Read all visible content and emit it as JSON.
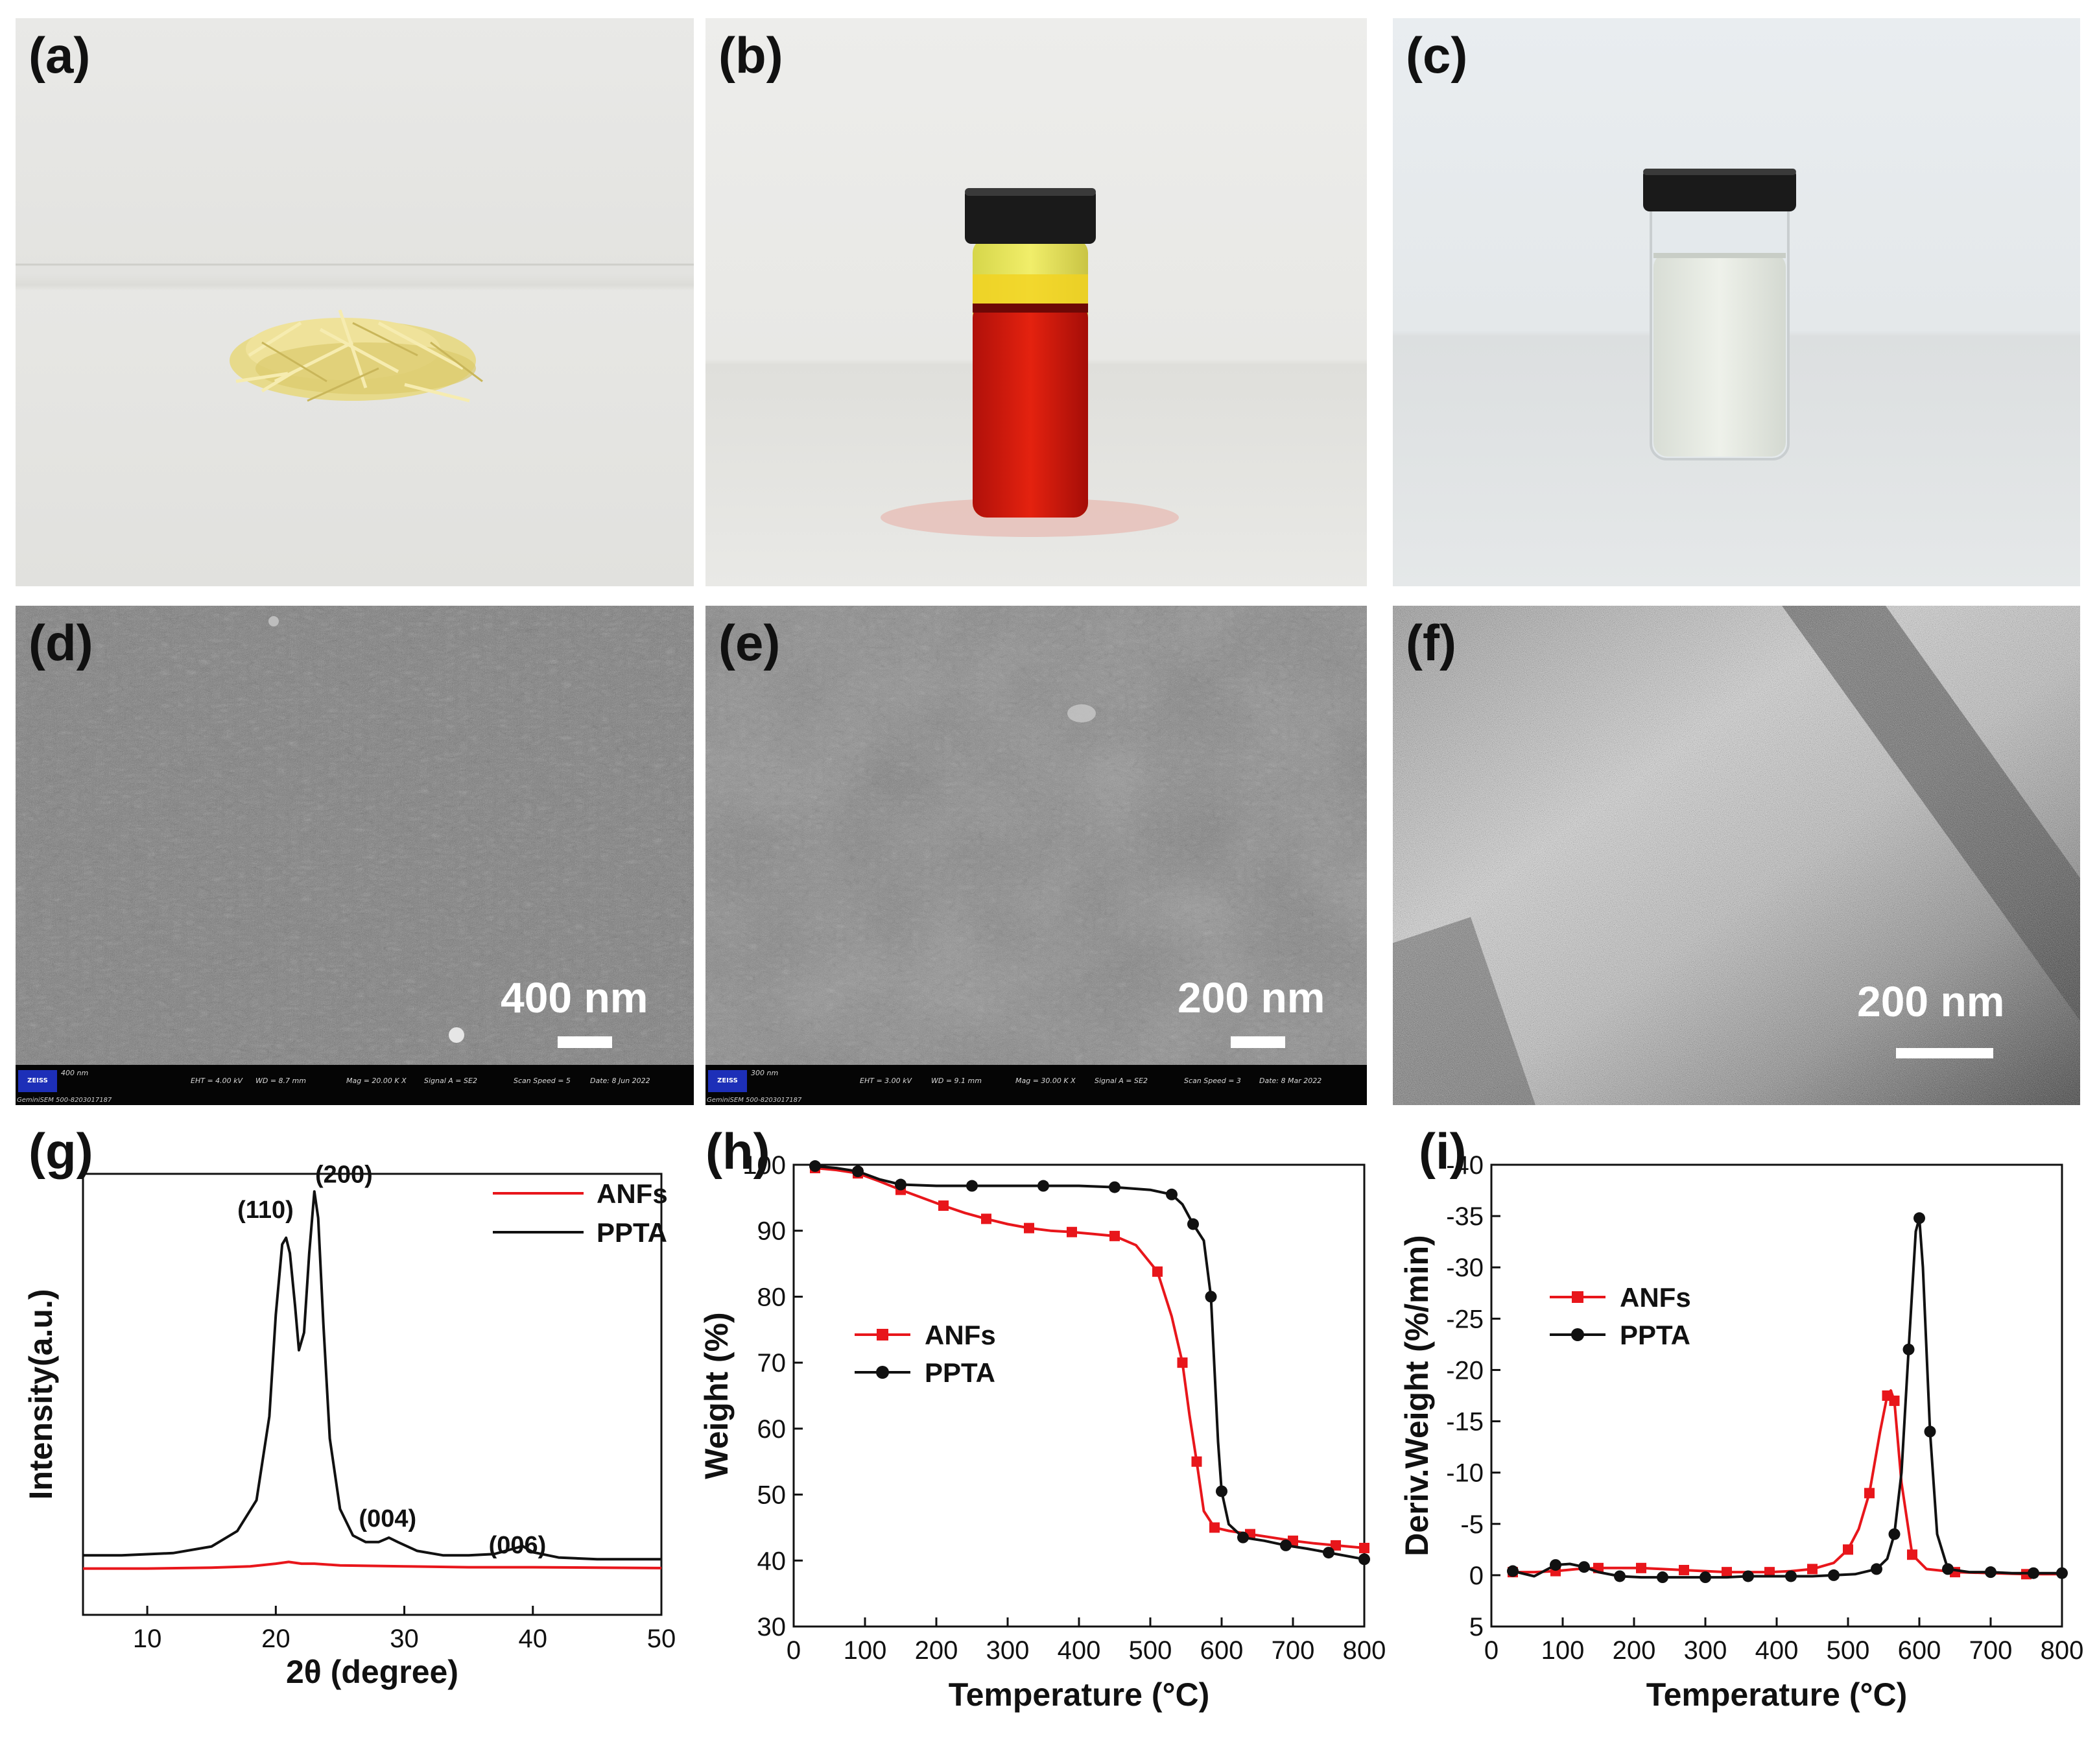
{
  "panels": {
    "a": {
      "label": "(a)"
    },
    "b": {
      "label": "(b)"
    },
    "c": {
      "label": "(c)"
    },
    "d": {
      "label": "(d)",
      "scale": "400 nm",
      "info": {
        "logo": "ZEISS",
        "mini_scale": "400 nm",
        "eht": "EHT = 4.00 kV",
        "wd": "WD = 8.7 mm",
        "mag": "Mag = 20.00 K X",
        "signal": "Signal A = SE2",
        "speed": "Scan Speed = 5",
        "date": "Date: 8 Jun 2022",
        "instrument": "GeminiSEM 500-8203017187"
      }
    },
    "e": {
      "label": "(e)",
      "scale": "200 nm",
      "info": {
        "logo": "ZEISS",
        "mini_scale": "300 nm",
        "eht": "EHT = 3.00 kV",
        "wd": "WD = 9.1 mm",
        "mag": "Mag = 30.00 K X",
        "signal": "Signal A = SE2",
        "speed": "Scan Speed = 3",
        "date": "Date: 8 Mar 2022",
        "instrument": "GeminiSEM 500-8203017187"
      }
    },
    "f": {
      "label": "(f)",
      "scale": "200 nm"
    },
    "g": {
      "label": "(g)"
    },
    "h": {
      "label": "(h)"
    },
    "i": {
      "label": "(i)"
    }
  },
  "colors": {
    "anfs": "#e8161b",
    "ppta": "#111111"
  },
  "chart_data": [
    {
      "id": "g",
      "type": "line",
      "title": "",
      "xlabel": "2θ (degree)",
      "ylabel": "Intensity(a.u.)",
      "xlim": [
        5,
        50
      ],
      "xticks": [
        10,
        20,
        30,
        40,
        50
      ],
      "ylim": [
        0,
        100
      ],
      "legend": [
        "ANFs",
        "PPTA"
      ],
      "legend_position": "top-right",
      "annotations": [
        {
          "text": "(110)",
          "x": 19.2,
          "y": 90
        },
        {
          "text": "(200)",
          "x": 25.3,
          "y": 98
        },
        {
          "text": "(004)",
          "x": 28.7,
          "y": 20
        },
        {
          "text": "(006)",
          "x": 38.8,
          "y": 14
        }
      ],
      "series": [
        {
          "name": "ANFs",
          "x": [
            5,
            10,
            15,
            18,
            20,
            21,
            22,
            23,
            25,
            30,
            35,
            40,
            45,
            50
          ],
          "y": [
            10.5,
            10.5,
            10.7,
            11,
            11.6,
            12,
            11.6,
            11.6,
            11.2,
            11,
            10.8,
            10.8,
            10.7,
            10.6
          ]
        },
        {
          "name": "PPTA",
          "x": [
            5,
            8,
            12,
            15,
            17,
            18.5,
            19.5,
            20,
            20.5,
            20.8,
            21.1,
            21.5,
            21.8,
            22.2,
            22.6,
            23,
            23.3,
            23.7,
            24.2,
            25,
            26,
            27,
            28,
            28.8,
            29.5,
            31,
            33,
            35,
            37,
            38.5,
            39.2,
            40,
            42,
            45,
            50
          ],
          "y": [
            13.5,
            13.5,
            14,
            15.5,
            19,
            26,
            45,
            68,
            84,
            85.5,
            82,
            70,
            60,
            64,
            82,
            96,
            90,
            66,
            40,
            24,
            18,
            16.5,
            16.5,
            17.5,
            16.5,
            14.5,
            13.5,
            13.5,
            13.8,
            15,
            15.6,
            14.2,
            13,
            12.6,
            12.6
          ]
        }
      ]
    },
    {
      "id": "h",
      "type": "line",
      "title": "",
      "xlabel": "Temperature (°C)",
      "ylabel": "Weight (%)",
      "xlim": [
        0,
        800
      ],
      "xticks": [
        0,
        100,
        200,
        300,
        400,
        500,
        600,
        700,
        800
      ],
      "ylim": [
        30,
        100
      ],
      "yticks": [
        30,
        40,
        50,
        60,
        70,
        80,
        90,
        100
      ],
      "legend": [
        "ANFs",
        "PPTA"
      ],
      "legend_position": "center-left",
      "series": [
        {
          "name": "ANFs",
          "x": [
            30,
            60,
            90,
            120,
            150,
            180,
            210,
            240,
            270,
            300,
            330,
            360,
            390,
            420,
            450,
            480,
            510,
            530,
            545,
            555,
            565,
            575,
            590,
            610,
            640,
            670,
            700,
            730,
            760,
            790,
            800
          ],
          "y": [
            99.5,
            99.2,
            98.7,
            97.5,
            96.2,
            95,
            93.8,
            92.7,
            91.8,
            91,
            90.4,
            90,
            89.8,
            89.5,
            89.2,
            87.8,
            83.8,
            77,
            70,
            62,
            55,
            47.5,
            45,
            44.5,
            44,
            43.5,
            43,
            42.6,
            42.3,
            42,
            41.9
          ]
        },
        {
          "name": "PPTA",
          "x": [
            30,
            60,
            90,
            120,
            150,
            200,
            250,
            300,
            350,
            400,
            450,
            500,
            530,
            545,
            560,
            575,
            585,
            595,
            600,
            610,
            630,
            660,
            690,
            720,
            750,
            780,
            800
          ],
          "y": [
            99.8,
            99.5,
            99,
            97.8,
            97,
            96.8,
            96.8,
            96.8,
            96.8,
            96.8,
            96.6,
            96.2,
            95.5,
            94,
            91,
            88.5,
            80,
            58,
            50.5,
            45.5,
            43.5,
            43,
            42.3,
            41.8,
            41.2,
            40.6,
            40.2
          ]
        }
      ]
    },
    {
      "id": "i",
      "type": "line",
      "title": "",
      "xlabel": "Temperature (°C)",
      "ylabel": "Deriv.Weight (%/min)",
      "xlim": [
        0,
        800
      ],
      "xticks": [
        0,
        100,
        200,
        300,
        400,
        500,
        600,
        700,
        800
      ],
      "ylim": [
        5,
        -40
      ],
      "yticks": [
        5,
        0,
        -5,
        -10,
        -15,
        -20,
        -25,
        -30,
        -35,
        -40
      ],
      "legend": [
        "ANFs",
        "PPTA"
      ],
      "legend_position": "top-left",
      "series": [
        {
          "name": "ANFs",
          "x": [
            30,
            60,
            90,
            120,
            150,
            180,
            210,
            240,
            270,
            300,
            330,
            360,
            390,
            420,
            450,
            480,
            500,
            515,
            530,
            545,
            555,
            560,
            565,
            575,
            590,
            610,
            650,
            700,
            750,
            800
          ],
          "y": [
            -0.3,
            -0.3,
            -0.4,
            -0.6,
            -0.7,
            -0.7,
            -0.7,
            -0.6,
            -0.5,
            -0.4,
            -0.3,
            -0.3,
            -0.3,
            -0.4,
            -0.6,
            -1.2,
            -2.5,
            -4.5,
            -8,
            -14,
            -17.5,
            -18,
            -17,
            -9,
            -2,
            -0.6,
            -0.3,
            -0.2,
            -0.1,
            -0.1
          ]
        },
        {
          "name": "PPTA",
          "x": [
            30,
            60,
            90,
            110,
            130,
            150,
            180,
            210,
            240,
            270,
            300,
            330,
            360,
            390,
            420,
            450,
            480,
            510,
            540,
            555,
            565,
            575,
            585,
            595,
            600,
            605,
            615,
            625,
            640,
            670,
            700,
            730,
            760,
            790,
            800
          ],
          "y": [
            -0.4,
            0.1,
            -1.0,
            -1.1,
            -0.8,
            -0.3,
            0.1,
            0.2,
            0.2,
            0.2,
            0.2,
            0.2,
            0.1,
            0.1,
            0.1,
            0.1,
            0.0,
            -0.1,
            -0.6,
            -1.6,
            -4,
            -10,
            -22,
            -33.5,
            -34.8,
            -30,
            -14,
            -4,
            -0.6,
            -0.3,
            -0.3,
            -0.2,
            -0.2,
            -0.2,
            -0.2
          ]
        }
      ]
    }
  ]
}
